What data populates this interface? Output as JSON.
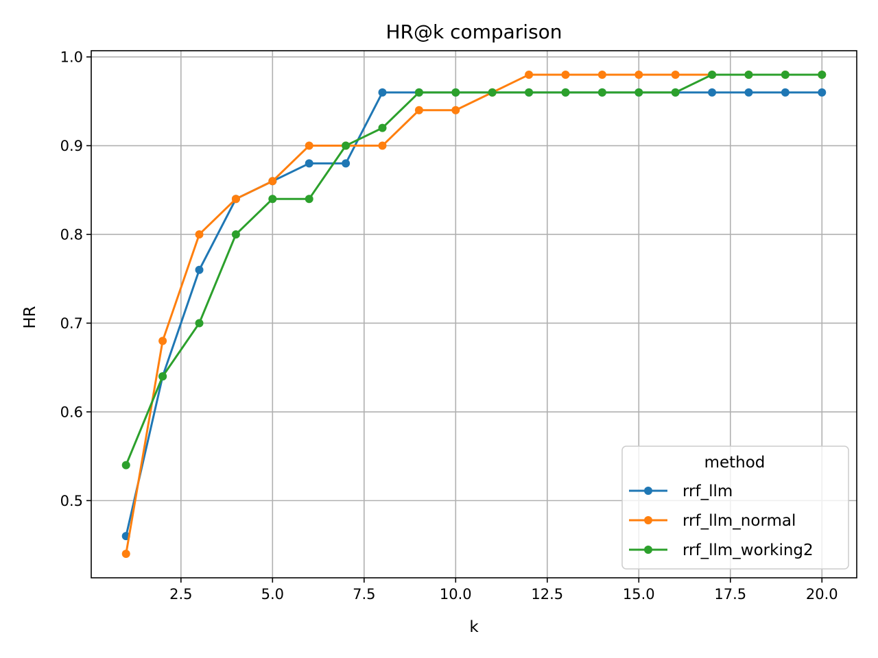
{
  "chart_data": {
    "type": "line",
    "title": "HR@k comparison",
    "xlabel": "k",
    "ylabel": "HR",
    "xlim": [
      0.05,
      20.95
    ],
    "ylim": [
      0.413,
      1.007
    ],
    "xticks": [
      2.5,
      5.0,
      7.5,
      10.0,
      12.5,
      15.0,
      17.5,
      20.0
    ],
    "xtick_labels": [
      "2.5",
      "5.0",
      "7.5",
      "10.0",
      "12.5",
      "15.0",
      "17.5",
      "20.0"
    ],
    "yticks": [
      0.5,
      0.6,
      0.7,
      0.8,
      0.9,
      1.0
    ],
    "ytick_labels": [
      "0.5",
      "0.6",
      "0.7",
      "0.8",
      "0.9",
      "1.0"
    ],
    "grid": true,
    "legend_title": "method",
    "legend_position": "lower-right",
    "x": [
      1,
      2,
      3,
      4,
      5,
      6,
      7,
      8,
      9,
      10,
      11,
      12,
      13,
      14,
      15,
      16,
      17,
      18,
      19,
      20
    ],
    "series": [
      {
        "name": "rrf_llm",
        "color": "#1f77b4",
        "values": [
          0.46,
          0.64,
          0.76,
          0.84,
          0.86,
          0.88,
          0.88,
          0.96,
          0.96,
          0.96,
          0.96,
          0.96,
          0.96,
          0.96,
          0.96,
          0.96,
          0.96,
          0.96,
          0.96,
          0.96
        ]
      },
      {
        "name": "rrf_llm_normal",
        "color": "#ff7f0e",
        "values": [
          0.44,
          0.68,
          0.8,
          0.84,
          0.86,
          0.9,
          0.9,
          0.9,
          0.94,
          0.94,
          0.96,
          0.98,
          0.98,
          0.98,
          0.98,
          0.98,
          0.98,
          0.98,
          0.98,
          0.98
        ]
      },
      {
        "name": "rrf_llm_working2",
        "color": "#2ca02c",
        "values": [
          0.54,
          0.64,
          0.7,
          0.8,
          0.84,
          0.84,
          0.9,
          0.92,
          0.96,
          0.96,
          0.96,
          0.96,
          0.96,
          0.96,
          0.96,
          0.96,
          0.98,
          0.98,
          0.98,
          0.98
        ]
      }
    ]
  }
}
